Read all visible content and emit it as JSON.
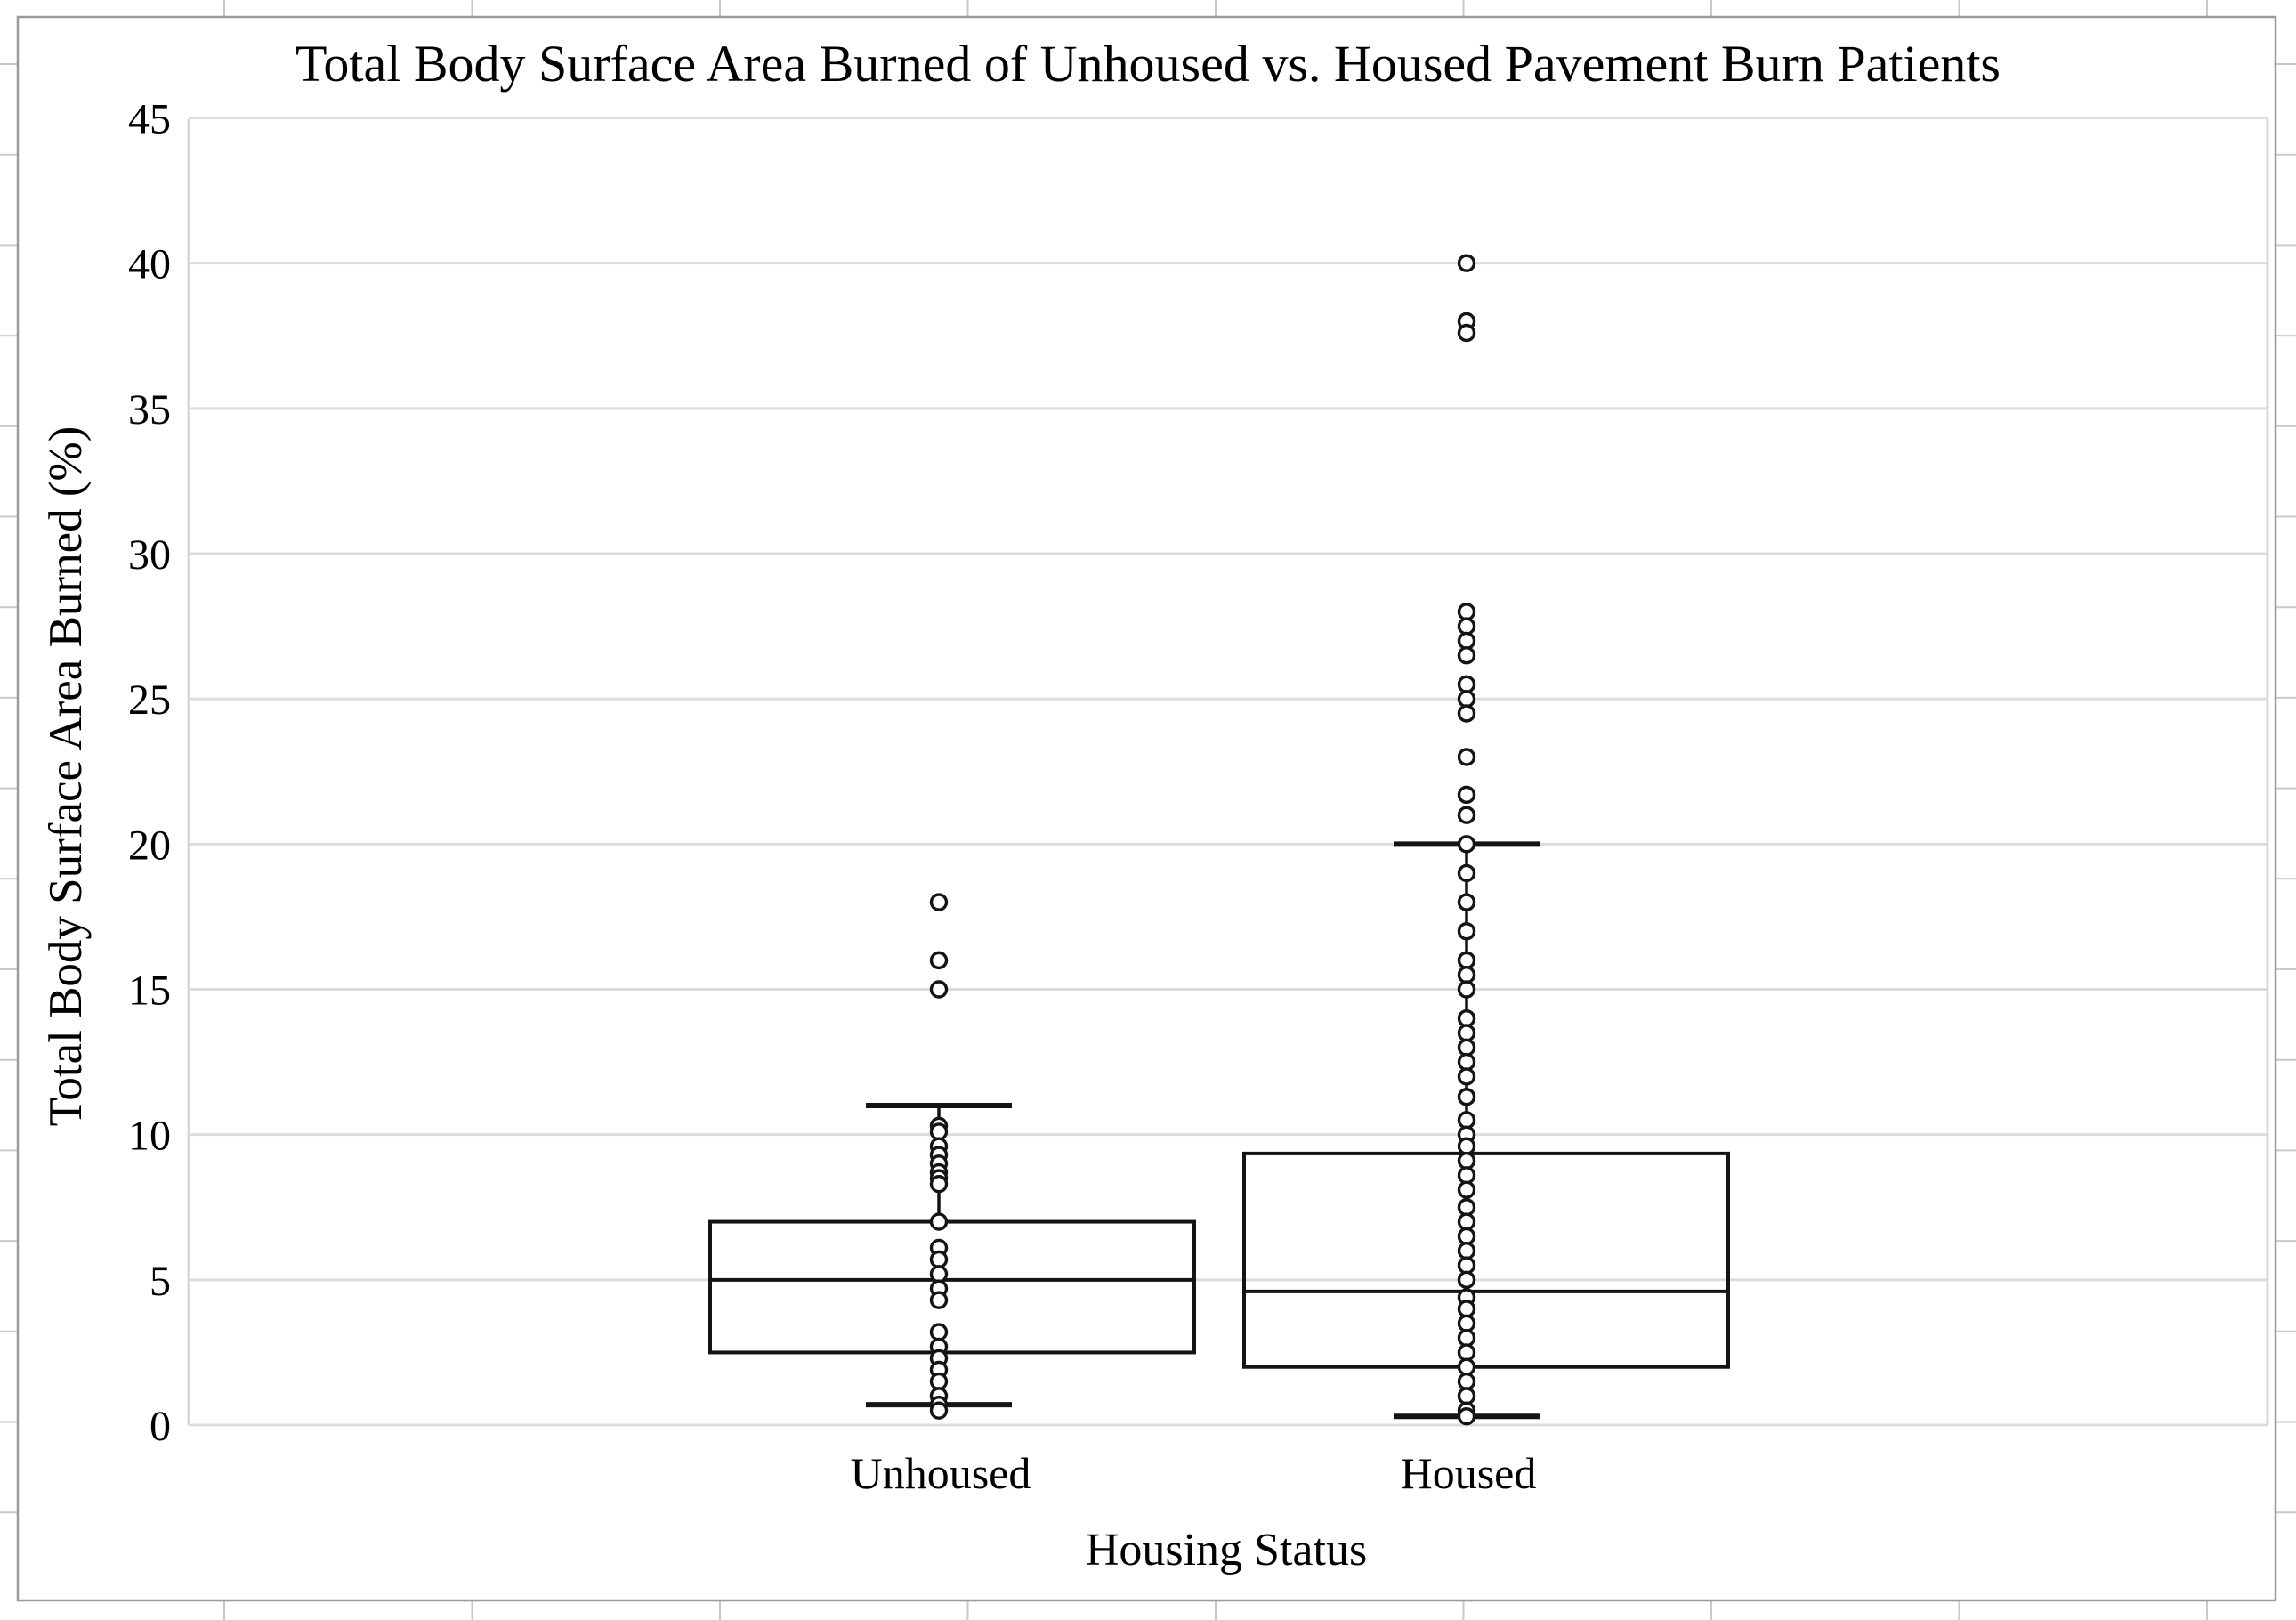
{
  "window": {
    "background": "#ffffff",
    "frame_color": "#9a9a9a",
    "sheet_gridline_color": "#c9c9c9"
  },
  "chart_data": {
    "type": "box",
    "title": "Total Body Surface Area Burned of Unhoused vs. Housed Pavement Burn Patients",
    "xlabel": "Housing Status",
    "ylabel": "Total Body Surface Area Burned (%)",
    "ylim": [
      0,
      45
    ],
    "y_ticks": [
      0,
      5,
      10,
      15,
      20,
      25,
      30,
      35,
      40,
      45
    ],
    "grid": "horizontal",
    "legend": "none",
    "categories": [
      "Unhoused",
      "Housed"
    ],
    "colors": {
      "box_line": "#141414",
      "point_stroke": "#141414",
      "point_fill": "#ffffff",
      "gridline": "#dcdcdc",
      "plot_border": "#d8d8d8"
    },
    "series": [
      {
        "name": "Unhoused",
        "whisker_low": 0.7,
        "q1": 2.5,
        "median": 5.0,
        "q3": 7.0,
        "whisker_high": 11.0,
        "points": [
          18,
          16,
          15,
          10.3,
          10.1,
          9.6,
          9.3,
          9.0,
          8.7,
          8.5,
          8.3,
          7.0,
          6.1,
          5.7,
          5.2,
          4.7,
          4.3,
          3.2,
          2.7,
          2.3,
          1.9,
          1.5,
          1.0,
          0.7,
          0.5
        ]
      },
      {
        "name": "Housed",
        "whisker_low": 0.3,
        "q1": 2.0,
        "median": 4.6,
        "q3": 9.35,
        "whisker_high": 20.0,
        "points": [
          40,
          38,
          37.6,
          28,
          27.5,
          27,
          26.5,
          25.5,
          25,
          24.5,
          23,
          21.7,
          21,
          20,
          19,
          18,
          17,
          16,
          15.5,
          15,
          14,
          13.5,
          13,
          12.5,
          12,
          11.3,
          10.5,
          10,
          9.6,
          9.1,
          8.6,
          8.1,
          7.5,
          7.0,
          6.5,
          6.0,
          5.5,
          5.0,
          4.4,
          4.0,
          3.5,
          3.0,
          2.5,
          2.0,
          1.5,
          1.0,
          0.5,
          0.3
        ]
      }
    ]
  }
}
